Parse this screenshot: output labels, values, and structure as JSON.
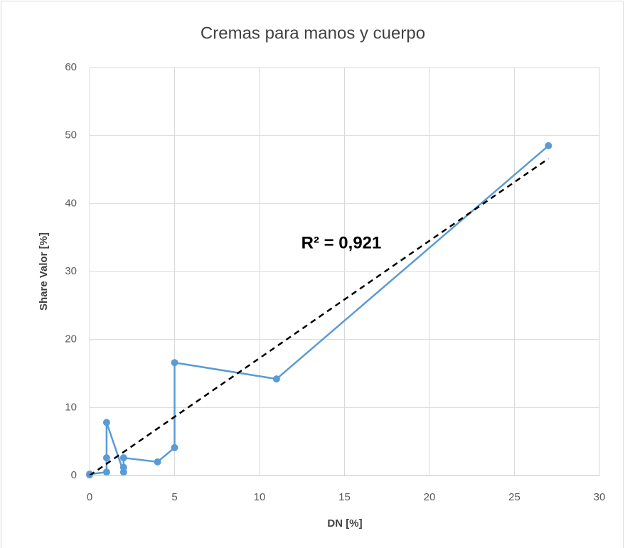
{
  "chart_data": {
    "type": "scatter",
    "title": "Cremas para manos y cuerpo",
    "xlabel": "DN [%]",
    "ylabel": "Share Valor [%]",
    "series": [
      {
        "color": "#5b9bd5",
        "lines": true,
        "x": [
          0,
          0,
          1,
          1,
          1,
          2,
          2,
          2,
          4,
          5,
          5,
          11,
          27
        ],
        "values": [
          0.1,
          0.2,
          0.5,
          2.6,
          7.8,
          0.5,
          1.2,
          2.6,
          2.0,
          4.1,
          16.6,
          14.2,
          48.5
        ]
      }
    ],
    "trendline": {
      "color": "#000000",
      "x": [
        0,
        27
      ],
      "values": [
        0.0,
        46.6
      ]
    },
    "annotations": [
      "R² = 0,921"
    ],
    "xlim": [
      0,
      30
    ],
    "xticks": [
      0,
      5,
      10,
      15,
      20,
      25,
      30
    ],
    "ylim": [
      0,
      60
    ],
    "yticks": [
      0,
      10,
      20,
      30,
      40,
      50,
      60
    ],
    "grid": true
  }
}
